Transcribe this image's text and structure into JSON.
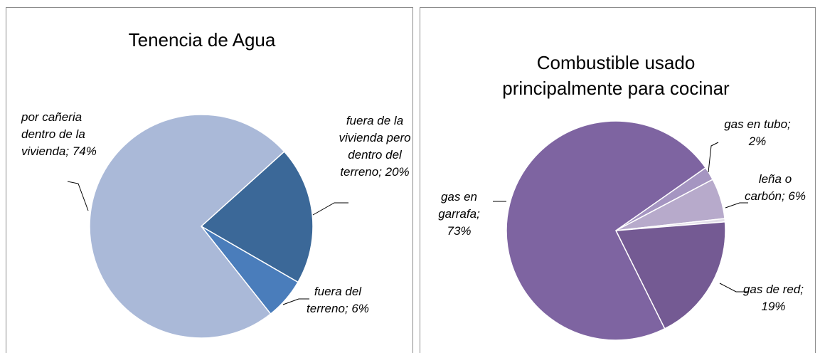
{
  "chart_data": [
    {
      "type": "pie",
      "title": "Tenencia de Agua",
      "labels": [
        "fuera de la vivienda pero dentro del terreno; 20%",
        "fuera del terreno; 6%",
        "por cañeria dentro de la vivienda; 74%"
      ],
      "values": [
        20,
        6,
        74
      ],
      "colors": [
        "#3b6898",
        "#4a7dbb",
        "#aab9d8"
      ]
    },
    {
      "type": "pie",
      "title": "Combustible usado principalmente para cocinar",
      "labels": [
        "gas en tubo; 2%",
        "leña o carbón; 6%",
        null,
        "gas de red; 19%",
        "gas en garrafa; 73%"
      ],
      "values": [
        2,
        6,
        0.5,
        19,
        73
      ],
      "colors": [
        "#a595c1",
        "#b7aacb",
        "#e4e0ea",
        "#745a93",
        "#7e64a1"
      ]
    }
  ]
}
